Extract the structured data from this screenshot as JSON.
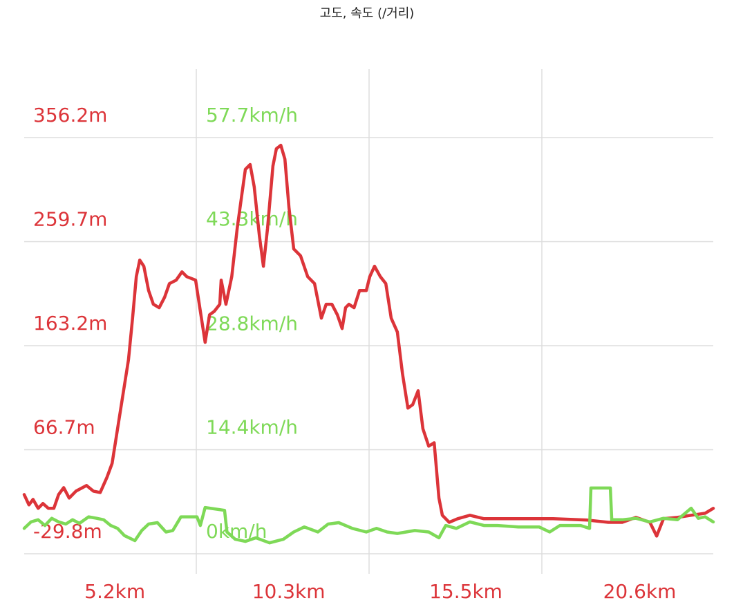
{
  "chart_data": {
    "type": "line",
    "title": "고도, 속도 (/거리)",
    "xlim": [
      2.54,
      22.76
    ],
    "xticks": [
      {
        "value": 5.2,
        "label": "5.2km"
      },
      {
        "value": 10.3,
        "label": "10.3km"
      },
      {
        "value": 15.5,
        "label": "15.5km"
      },
      {
        "value": 20.6,
        "label": "20.6km"
      }
    ],
    "ylim": [
      -48.4,
      419.7
    ],
    "yticks": [
      {
        "value": -29.8,
        "label": "-29.8m"
      },
      {
        "value": 66.7,
        "label": "66.7m"
      },
      {
        "value": 163.2,
        "label": "163.2m"
      },
      {
        "value": 259.7,
        "label": "259.7m"
      },
      {
        "value": 356.2,
        "label": "356.2m"
      }
    ],
    "y2lim": [
      -2.8,
      67.2
    ],
    "y2ticks": [
      {
        "value": 0,
        "label": "0km/h"
      },
      {
        "value": 14.4,
        "label": "14.4km/h"
      },
      {
        "value": 28.8,
        "label": "28.8km/h"
      },
      {
        "value": 43.3,
        "label": "43.3km/h"
      },
      {
        "value": 57.7,
        "label": "57.7km/h"
      }
    ],
    "grid": true,
    "series": [
      {
        "color": "#dc3439",
        "x": [
          2.54,
          2.68,
          2.8,
          2.95,
          3.09,
          3.25,
          3.41,
          3.55,
          3.7,
          3.86,
          4.06,
          4.37,
          4.57,
          4.77,
          4.97,
          5.12,
          5.28,
          5.44,
          5.6,
          5.72,
          5.83,
          5.93,
          6.05,
          6.19,
          6.33,
          6.5,
          6.66,
          6.8,
          7.0,
          7.17,
          7.31,
          7.57,
          7.71,
          7.85,
          7.98,
          8.12,
          8.28,
          8.32,
          8.46,
          8.63,
          8.79,
          8.93,
          9.03,
          9.17,
          9.29,
          9.44,
          9.56,
          9.68,
          9.84,
          9.94,
          10.07,
          10.19,
          10.31,
          10.45,
          10.65,
          10.86,
          11.06,
          11.26,
          11.4,
          11.57,
          11.73,
          11.87,
          11.97,
          12.07,
          12.22,
          12.38,
          12.58,
          12.68,
          12.82,
          12.99,
          13.15,
          13.31,
          13.49,
          13.64,
          13.8,
          13.94,
          14.1,
          14.24,
          14.41,
          14.57,
          14.71,
          14.81,
          15.01,
          15.26,
          15.62,
          16.03,
          17.04,
          18.06,
          19.07,
          19.68,
          20.09,
          20.49,
          20.9,
          21.1,
          21.3,
          21.71,
          22.11,
          22.52,
          22.76
        ],
        "values": [
          25.1,
          15.5,
          20.6,
          12.3,
          16.8,
          12.3,
          12.3,
          25.1,
          31.5,
          21.9,
          28.3,
          33.5,
          28.3,
          27.0,
          41.2,
          54.0,
          86.1,
          118.2,
          150.2,
          188.7,
          227.2,
          242.6,
          236.9,
          214.4,
          201.6,
          198.4,
          208.0,
          220.8,
          224.0,
          231.7,
          227.2,
          224.0,
          195.1,
          166.3,
          191.9,
          195.1,
          201.6,
          224.0,
          201.6,
          227.2,
          272.1,
          304.2,
          326.7,
          331.2,
          310.6,
          265.7,
          236.9,
          272.1,
          329.9,
          345.9,
          349.1,
          336.3,
          291.4,
          252.9,
          246.5,
          227.2,
          220.8,
          188.7,
          201.6,
          201.6,
          191.9,
          179.1,
          198.4,
          201.6,
          198.4,
          214.4,
          214.4,
          227.2,
          236.9,
          227.2,
          220.8,
          188.7,
          175.9,
          137.4,
          105.3,
          108.5,
          121.4,
          86.1,
          70.0,
          73.2,
          21.9,
          5.9,
          -0.6,
          2.7,
          5.9,
          2.7,
          2.7,
          2.7,
          1.4,
          -0.6,
          -0.6,
          3.9,
          -0.6,
          -13.4,
          2.7,
          3.9,
          5.9,
          7.8,
          12.3
        ]
      },
      {
        "color": "#7ed957",
        "axis": "y2",
        "x": [
          2.54,
          2.74,
          2.95,
          3.15,
          3.35,
          3.55,
          3.76,
          3.96,
          4.16,
          4.43,
          4.67,
          4.87,
          5.08,
          5.28,
          5.48,
          5.79,
          5.99,
          6.19,
          6.45,
          6.7,
          6.9,
          7.14,
          7.61,
          7.71,
          7.85,
          8.42,
          8.49,
          8.73,
          9.03,
          9.34,
          9.74,
          10.15,
          10.45,
          10.76,
          11.16,
          11.46,
          11.77,
          12.17,
          12.58,
          12.88,
          13.19,
          13.49,
          14.0,
          14.41,
          14.71,
          14.91,
          15.22,
          15.62,
          16.03,
          16.43,
          17.04,
          17.65,
          17.96,
          18.26,
          18.87,
          19.13,
          19.17,
          19.74,
          19.78,
          20.09,
          20.49,
          20.9,
          21.3,
          21.71,
          22.11,
          22.32,
          22.52,
          22.76
        ],
        "values": [
          3.5,
          4.4,
          4.7,
          3.9,
          4.9,
          4.4,
          4.1,
          4.7,
          4.2,
          5.1,
          4.9,
          4.7,
          3.9,
          3.5,
          2.5,
          1.8,
          3.2,
          4.1,
          4.3,
          3.0,
          3.2,
          5.1,
          5.1,
          3.9,
          6.4,
          6.0,
          3.0,
          2.0,
          1.7,
          2.2,
          1.5,
          2.0,
          3.0,
          3.7,
          3.0,
          4.1,
          4.3,
          3.5,
          3.0,
          3.5,
          3.0,
          2.8,
          3.2,
          3.0,
          2.2,
          3.9,
          3.5,
          4.4,
          3.9,
          3.9,
          3.7,
          3.7,
          3.0,
          3.9,
          3.9,
          3.5,
          9.1,
          9.1,
          4.7,
          4.7,
          4.9,
          4.4,
          4.9,
          4.7,
          6.3,
          4.9,
          5.1,
          4.4
        ]
      }
    ]
  }
}
